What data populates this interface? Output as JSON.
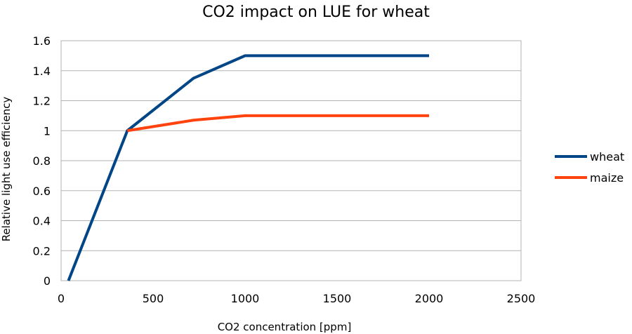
{
  "chart_data": {
    "type": "line",
    "title": "CO2 impact on LUE for wheat",
    "xlabel": "CO2 concentration [ppm]",
    "ylabel": "Relative light use efficiency",
    "xlim": [
      0,
      2500
    ],
    "ylim": [
      0,
      1.6
    ],
    "x_ticks": [
      0,
      500,
      1000,
      1500,
      2000,
      2500
    ],
    "y_ticks": [
      0,
      0.2,
      0.4,
      0.6,
      0.8,
      1,
      1.2,
      1.4,
      1.6
    ],
    "grid": true,
    "legend_position": "right",
    "series": [
      {
        "name": "wheat",
        "color": "#004586",
        "x": [
          40,
          360,
          720,
          1000,
          2000
        ],
        "y": [
          0,
          1.0,
          1.35,
          1.5,
          1.5
        ]
      },
      {
        "name": "maize",
        "color": "#ff420e",
        "x": [
          360,
          720,
          1000,
          2000
        ],
        "y": [
          1.0,
          1.07,
          1.1,
          1.1
        ]
      }
    ]
  }
}
